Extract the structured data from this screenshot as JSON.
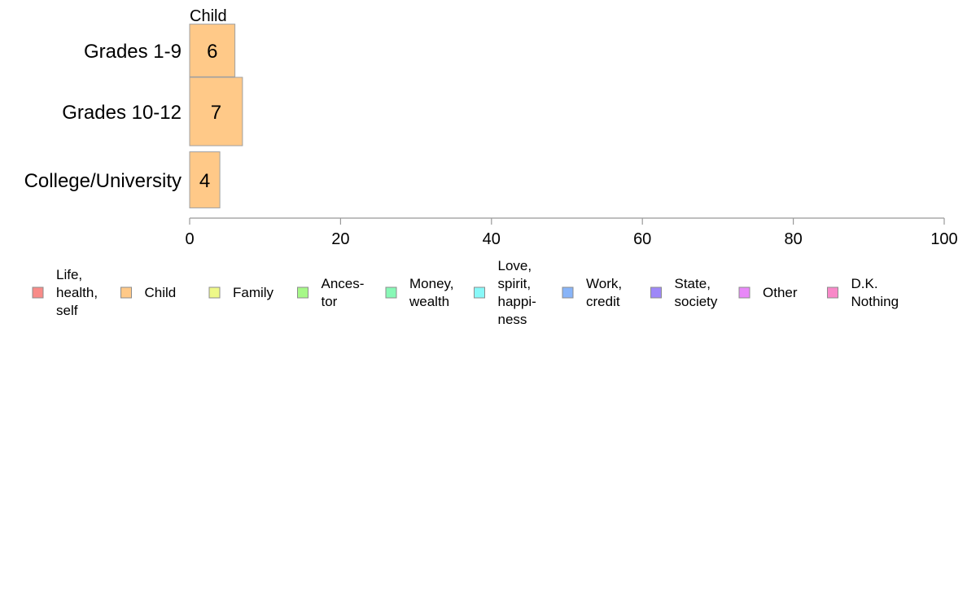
{
  "chart_data": {
    "type": "bar",
    "orientation": "horizontal",
    "title": "Child",
    "categories": [
      "Grades 1-9",
      "Grades 10-12",
      "College/University"
    ],
    "series": [
      {
        "name": "Child",
        "values": [
          6,
          7,
          4
        ],
        "color": "#FFC988"
      }
    ],
    "data_labels": [
      "6",
      "7",
      "4"
    ],
    "bar_widths_relative": [
      0.77,
      1.0,
      0.82
    ],
    "xlim": [
      0,
      100
    ],
    "x_ticks": [
      0,
      20,
      40,
      60,
      80,
      100
    ],
    "x_tick_labels": [
      "0",
      "20",
      "40",
      "60",
      "80",
      "100"
    ],
    "grid": false,
    "legend_position": "bottom",
    "legend": [
      {
        "lines": [
          "Life,",
          "health,",
          "self"
        ],
        "color": "#F88B88"
      },
      {
        "lines": [
          "Child"
        ],
        "color": "#FFC988"
      },
      {
        "lines": [
          "Family"
        ],
        "color": "#EEF888"
      },
      {
        "lines": [
          "Ances-",
          "tor"
        ],
        "color": "#A6F888"
      },
      {
        "lines": [
          "Money,",
          "wealth"
        ],
        "color": "#88F8B6"
      },
      {
        "lines": [
          "Love,",
          "spirit,",
          "happi-",
          "ness"
        ],
        "color": "#88F8F8"
      },
      {
        "lines": [
          "Work,",
          "credit"
        ],
        "color": "#88B4F8"
      },
      {
        "lines": [
          "State,",
          "society"
        ],
        "color": "#9E88F8"
      },
      {
        "lines": [
          "Other"
        ],
        "color": "#E888F8"
      },
      {
        "lines": [
          "D.K.",
          "Nothing"
        ],
        "color": "#F888C8"
      }
    ]
  }
}
